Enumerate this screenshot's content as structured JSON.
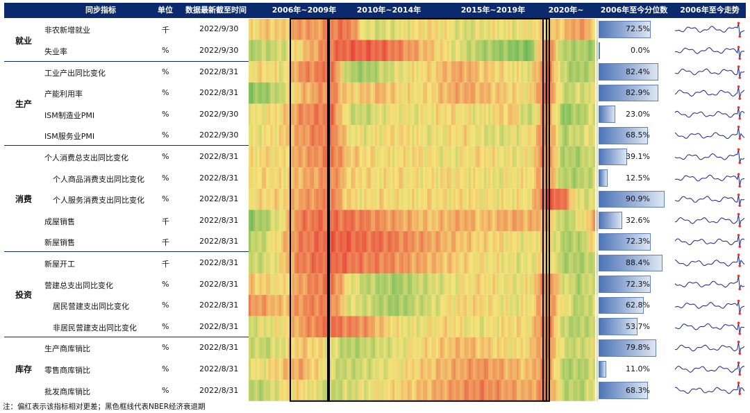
{
  "header": {
    "indicator": "同步指标",
    "unit": "单位",
    "date": "数据最新截至时间",
    "p1": "2006年~2009年",
    "p2": "2010年~2014年",
    "p3": "2015年~2019年",
    "p4": "2020年~",
    "pct": "2006年至今分位数",
    "trend": "2006年至今走势"
  },
  "categories": [
    "就业",
    "生产",
    "消费",
    "投资",
    "库存"
  ],
  "note": "注：偏红表示该指标相对更差；黑色框线代表NBER经济衰退期",
  "colors": {
    "header_bg": "#0b2a6e",
    "good": "#4caf50",
    "neutral": "#f5e37a",
    "bad": "#e8423a",
    "bar": "#4d74b8",
    "trend_line": "#1a237e",
    "trend_marker": "#e53935"
  },
  "chart_data": {
    "type": "heatmap",
    "rows": [
      {
        "name": "非农新增就业",
        "unit": "千",
        "date": "2022/9/30",
        "pct": "72.5%",
        "percentile": 0.725,
        "category": "就业"
      },
      {
        "name": "失业率",
        "unit": "%",
        "date": "2022/9/30",
        "pct": "0.0%",
        "percentile": 0.0,
        "category": "就业"
      },
      {
        "name": "工业产出同比变化",
        "unit": "%",
        "date": "2022/8/31",
        "pct": "82.4%",
        "percentile": 0.824,
        "category": "生产"
      },
      {
        "name": "产能利用率",
        "unit": "%",
        "date": "2022/8/31",
        "pct": "82.9%",
        "percentile": 0.829,
        "category": "生产"
      },
      {
        "name": "ISM制造业PMI",
        "unit": "%",
        "date": "2022/9/30",
        "pct": "23.0%",
        "percentile": 0.23,
        "category": "生产"
      },
      {
        "name": "ISM服务业PMI",
        "unit": "%",
        "date": "2022/9/30",
        "pct": "68.5%",
        "percentile": 0.685,
        "category": "生产"
      },
      {
        "name": "个人消费总支出同比变化",
        "unit": "%",
        "date": "2022/8/31",
        "pct": "39.1%",
        "percentile": 0.391,
        "category": "消费"
      },
      {
        "name": "个人商品消费支出同比变化",
        "unit": "%",
        "date": "2022/8/31",
        "pct": "12.5%",
        "percentile": 0.125,
        "category": "消费",
        "indent": true
      },
      {
        "name": "个人服务消费支出同比变化",
        "unit": "%",
        "date": "2022/8/31",
        "pct": "90.9%",
        "percentile": 0.909,
        "category": "消费",
        "indent": true
      },
      {
        "name": "成屋销售",
        "unit": "千",
        "date": "2022/8/31",
        "pct": "32.6%",
        "percentile": 0.326,
        "category": "消费"
      },
      {
        "name": "新屋销售",
        "unit": "千",
        "date": "2022/8/31",
        "pct": "72.3%",
        "percentile": 0.723,
        "category": "消费"
      },
      {
        "name": "新屋开工",
        "unit": "千",
        "date": "2022/8/31",
        "pct": "88.4%",
        "percentile": 0.884,
        "category": "投资"
      },
      {
        "name": "营建总支出同比变化",
        "unit": "%",
        "date": "2022/8/31",
        "pct": "72.3%",
        "percentile": 0.723,
        "category": "投资"
      },
      {
        "name": "居民营建支出同比变化",
        "unit": "%",
        "date": "2022/8/31",
        "pct": "62.8%",
        "percentile": 0.628,
        "category": "投资",
        "indent": true
      },
      {
        "name": "非居民营建支出同比变化",
        "unit": "%",
        "date": "2022/8/31",
        "pct": "53.7%",
        "percentile": 0.537,
        "category": "投资",
        "indent": true
      },
      {
        "name": "生产商库销比",
        "unit": "%",
        "date": "2022/8/31",
        "pct": "79.8%",
        "percentile": 0.798,
        "category": "库存"
      },
      {
        "name": "零售商库销比",
        "unit": "%",
        "date": "2022/8/31",
        "pct": "11.0%",
        "percentile": 0.11,
        "category": "库存"
      },
      {
        "name": "批发商库销比",
        "unit": "%",
        "date": "2022/8/31",
        "pct": "68.3%",
        "percentile": 0.683,
        "category": "库存"
      }
    ],
    "heat_segments": [
      [
        0.5,
        0.6,
        0.55,
        0.75,
        0.7,
        0.8,
        0.85,
        0.45,
        0.4,
        0.45,
        0.5,
        0.55,
        0.5,
        0.4,
        0.45,
        0.5,
        0.45,
        0.5,
        0.55,
        0.6,
        0.75,
        0.55
      ],
      [
        0.3,
        0.35,
        0.4,
        0.55,
        0.7,
        0.85,
        0.9,
        0.9,
        0.88,
        0.8,
        0.7,
        0.6,
        0.5,
        0.4,
        0.3,
        0.25,
        0.2,
        0.15,
        0.9,
        0.3,
        0.3,
        0.25
      ],
      [
        0.5,
        0.55,
        0.45,
        0.75,
        0.8,
        0.85,
        0.3,
        0.25,
        0.35,
        0.45,
        0.5,
        0.55,
        0.65,
        0.7,
        0.6,
        0.55,
        0.5,
        0.45,
        0.9,
        0.35,
        0.25,
        0.4
      ],
      [
        0.2,
        0.25,
        0.4,
        0.6,
        0.7,
        0.8,
        0.55,
        0.6,
        0.65,
        0.55,
        0.5,
        0.55,
        0.65,
        0.7,
        0.65,
        0.6,
        0.55,
        0.5,
        0.95,
        0.35,
        0.4,
        0.45
      ],
      [
        0.45,
        0.5,
        0.55,
        0.75,
        0.8,
        0.85,
        0.4,
        0.35,
        0.45,
        0.5,
        0.45,
        0.5,
        0.55,
        0.5,
        0.45,
        0.55,
        0.6,
        0.3,
        0.85,
        0.2,
        0.3,
        0.45
      ],
      [
        0.45,
        0.5,
        0.55,
        0.7,
        0.8,
        0.85,
        0.5,
        0.45,
        0.5,
        0.55,
        0.5,
        0.45,
        0.5,
        0.55,
        0.45,
        0.4,
        0.45,
        0.5,
        0.85,
        0.3,
        0.4,
        0.45
      ],
      [
        0.5,
        0.55,
        0.5,
        0.7,
        0.75,
        0.85,
        0.6,
        0.55,
        0.5,
        0.5,
        0.55,
        0.5,
        0.45,
        0.5,
        0.55,
        0.5,
        0.45,
        0.5,
        0.85,
        0.3,
        0.3,
        0.45
      ],
      [
        0.5,
        0.55,
        0.5,
        0.65,
        0.7,
        0.8,
        0.55,
        0.55,
        0.5,
        0.55,
        0.5,
        0.5,
        0.55,
        0.5,
        0.5,
        0.45,
        0.5,
        0.5,
        0.8,
        0.3,
        0.3,
        0.4
      ],
      [
        0.5,
        0.55,
        0.55,
        0.7,
        0.75,
        0.8,
        0.55,
        0.5,
        0.55,
        0.5,
        0.5,
        0.55,
        0.5,
        0.55,
        0.5,
        0.5,
        0.5,
        0.5,
        0.95,
        0.85,
        0.4,
        0.45
      ],
      [
        0.2,
        0.3,
        0.5,
        0.8,
        0.85,
        0.85,
        0.85,
        0.8,
        0.75,
        0.7,
        0.65,
        0.6,
        0.65,
        0.7,
        0.6,
        0.65,
        0.7,
        0.65,
        0.7,
        0.3,
        0.45,
        0.7
      ],
      [
        0.3,
        0.4,
        0.6,
        0.8,
        0.85,
        0.9,
        0.9,
        0.85,
        0.85,
        0.8,
        0.75,
        0.7,
        0.65,
        0.6,
        0.55,
        0.55,
        0.5,
        0.45,
        0.6,
        0.3,
        0.3,
        0.6
      ],
      [
        0.35,
        0.4,
        0.55,
        0.8,
        0.85,
        0.9,
        0.85,
        0.8,
        0.8,
        0.75,
        0.7,
        0.65,
        0.6,
        0.55,
        0.5,
        0.5,
        0.45,
        0.45,
        0.6,
        0.3,
        0.3,
        0.35
      ],
      [
        0.6,
        0.55,
        0.5,
        0.7,
        0.8,
        0.85,
        0.5,
        0.35,
        0.3,
        0.25,
        0.35,
        0.4,
        0.45,
        0.5,
        0.55,
        0.5,
        0.45,
        0.5,
        0.85,
        0.45,
        0.3,
        0.45
      ],
      [
        0.75,
        0.7,
        0.6,
        0.75,
        0.8,
        0.8,
        0.45,
        0.4,
        0.3,
        0.25,
        0.35,
        0.4,
        0.5,
        0.55,
        0.55,
        0.5,
        0.45,
        0.5,
        0.8,
        0.5,
        0.3,
        0.45
      ],
      [
        0.4,
        0.45,
        0.5,
        0.7,
        0.8,
        0.85,
        0.8,
        0.75,
        0.6,
        0.5,
        0.45,
        0.5,
        0.55,
        0.5,
        0.45,
        0.5,
        0.55,
        0.5,
        0.9,
        0.35,
        0.3,
        0.4
      ],
      [
        0.4,
        0.35,
        0.45,
        0.6,
        0.55,
        0.45,
        0.3,
        0.35,
        0.4,
        0.45,
        0.5,
        0.55,
        0.6,
        0.65,
        0.6,
        0.55,
        0.5,
        0.55,
        0.85,
        0.4,
        0.35,
        0.5
      ],
      [
        0.45,
        0.5,
        0.6,
        0.7,
        0.55,
        0.4,
        0.35,
        0.4,
        0.45,
        0.5,
        0.55,
        0.6,
        0.65,
        0.7,
        0.75,
        0.7,
        0.65,
        0.6,
        0.85,
        0.3,
        0.3,
        0.4
      ],
      [
        0.3,
        0.35,
        0.5,
        0.55,
        0.45,
        0.35,
        0.4,
        0.45,
        0.5,
        0.55,
        0.6,
        0.65,
        0.7,
        0.75,
        0.8,
        0.75,
        0.7,
        0.65,
        0.85,
        0.35,
        0.3,
        0.45
      ]
    ]
  }
}
